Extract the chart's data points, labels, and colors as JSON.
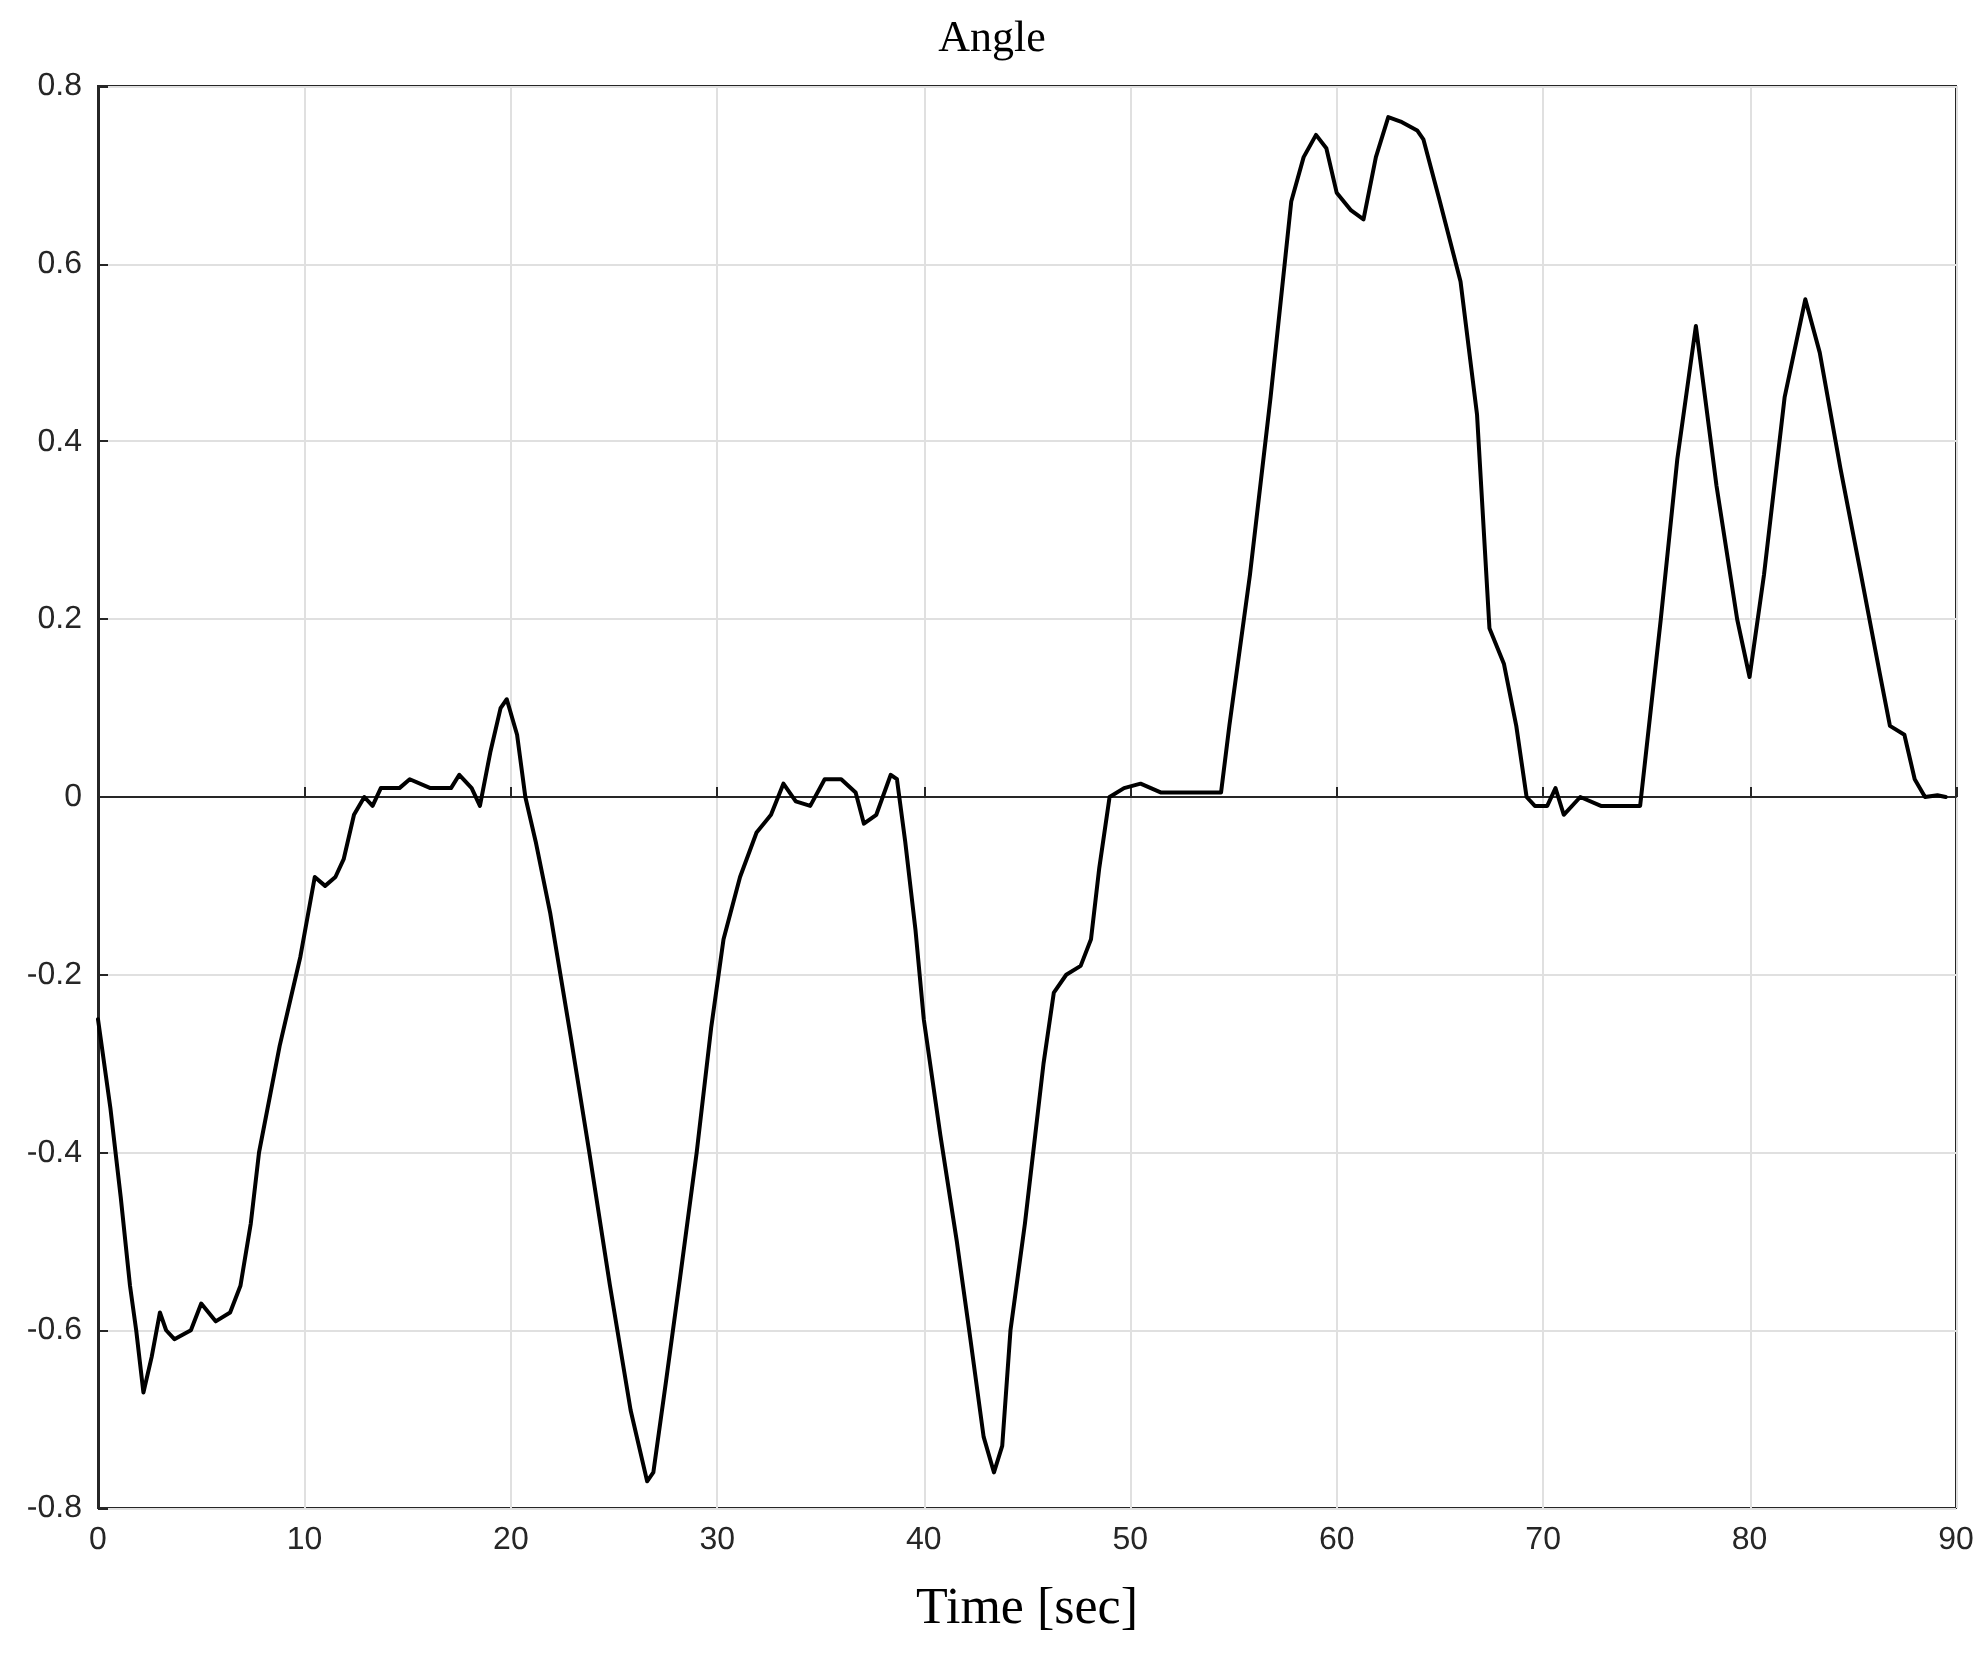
{
  "chart_data": {
    "type": "line",
    "title": "Angle",
    "xlabel": "Time [sec]",
    "series": [
      {
        "color": "#000000",
        "x": [
          0,
          0.6,
          1.1,
          1.55,
          1.85,
          2.2,
          2.6,
          3.0,
          3.3,
          3.7,
          4.5,
          5.0,
          5.7,
          6.4,
          6.9,
          7.4,
          7.8,
          8.8,
          9.8,
          10.5,
          11.0,
          11.5,
          11.9,
          12.4,
          12.9,
          13.3,
          13.7,
          14.6,
          15.1,
          16.1,
          17.1,
          17.5,
          18.1,
          18.5,
          19.0,
          19.5,
          19.8,
          20.3,
          20.7,
          21.2,
          21.9,
          22.9,
          23.8,
          24.8,
          25.8,
          26.6,
          26.9,
          27.5,
          28.2,
          29.0,
          29.7,
          30.3,
          31.1,
          31.9,
          32.6,
          33.2,
          33.8,
          34.5,
          35.2,
          36.0,
          36.7,
          37.1,
          37.7,
          38.4,
          38.7,
          39.1,
          39.6,
          40.0,
          40.8,
          41.6,
          42.2,
          42.9,
          43.4,
          43.8,
          44.2,
          44.9,
          45.4,
          45.8,
          46.3,
          46.9,
          47.6,
          48.1,
          48.5,
          49.0,
          49.7,
          50.5,
          51.5,
          53.4,
          54.4,
          54.8,
          55.8,
          56.8,
          57.8,
          58.4,
          59.0,
          59.5,
          60.0,
          60.7,
          61.3,
          61.9,
          62.5,
          63.1,
          63.9,
          64.2,
          65.0,
          66.0,
          66.8,
          67.4,
          68.1,
          68.7,
          69.2,
          69.6,
          70.2,
          70.6,
          71.0,
          71.8,
          72.8,
          73.7,
          74.7,
          75.7,
          76.5,
          77.4,
          78.4,
          79.4,
          80.0,
          80.7,
          81.7,
          82.7,
          83.4,
          84.4,
          85.4,
          86.3,
          86.8,
          87.5,
          88.0,
          88.5,
          89.1,
          89.5
        ],
        "values": [
          -0.25,
          -0.35,
          -0.45,
          -0.55,
          -0.6,
          -0.67,
          -0.63,
          -0.58,
          -0.6,
          -0.61,
          -0.6,
          -0.57,
          -0.59,
          -0.58,
          -0.55,
          -0.48,
          -0.4,
          -0.28,
          -0.18,
          -0.09,
          -0.1,
          -0.09,
          -0.07,
          -0.02,
          0,
          -0.01,
          0.01,
          0.01,
          0.02,
          0.01,
          0.01,
          0.025,
          0.01,
          -0.01,
          0.05,
          0.1,
          0.11,
          0.07,
          0,
          -0.05,
          -0.13,
          -0.27,
          -0.4,
          -0.55,
          -0.69,
          -0.77,
          -0.76,
          -0.66,
          -0.54,
          -0.4,
          -0.26,
          -0.16,
          -0.09,
          -0.04,
          -0.02,
          0.015,
          -0.005,
          -0.01,
          0.02,
          0.02,
          0.005,
          -0.03,
          -0.02,
          0.025,
          0.02,
          -0.05,
          -0.15,
          -0.25,
          -0.38,
          -0.5,
          -0.6,
          -0.72,
          -0.76,
          -0.73,
          -0.6,
          -0.48,
          -0.38,
          -0.3,
          -0.22,
          -0.2,
          -0.19,
          -0.16,
          -0.08,
          0,
          0.01,
          0.015,
          0.005,
          0.005,
          0.005,
          0.08,
          0.25,
          0.45,
          0.67,
          0.72,
          0.745,
          0.73,
          0.68,
          0.66,
          0.65,
          0.72,
          0.765,
          0.76,
          0.75,
          0.74,
          0.67,
          0.58,
          0.43,
          0.19,
          0.15,
          0.08,
          0,
          -0.01,
          -0.01,
          0.01,
          -0.02,
          0,
          -0.01,
          -0.01,
          -0.01,
          0.2,
          0.38,
          0.53,
          0.35,
          0.2,
          0.135,
          0.25,
          0.45,
          0.56,
          0.5,
          0.37,
          0.25,
          0.14,
          0.08,
          0.07,
          0.02,
          0,
          0.002,
          0
        ]
      }
    ],
    "xlim": [
      0,
      90
    ],
    "xticks": [
      0,
      10,
      20,
      30,
      40,
      50,
      60,
      70,
      80,
      90
    ],
    "ylim": [
      -0.8,
      0.8
    ],
    "yticks": [
      -0.8,
      -0.6,
      -0.4,
      -0.2,
      0,
      0.2,
      0.4,
      0.6,
      0.8
    ],
    "grid": true,
    "marker": "none",
    "line_style": "solid"
  }
}
